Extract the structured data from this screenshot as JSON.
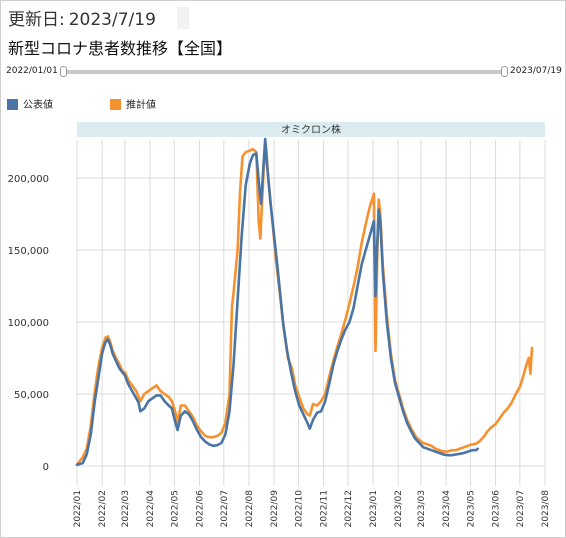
{
  "header": {
    "updated_label": "更新日:",
    "updated_value": "2023/7/19",
    "title": "新型コロナ患者数推移【全国】"
  },
  "slider": {
    "start_label": "2022/01/01",
    "end_label": "2023/07/19"
  },
  "colors": {
    "reported": "#4a74a4",
    "estimated": "#f6912f",
    "band": "#dbecf0",
    "grid": "#dcdcdc"
  },
  "chart_data": {
    "type": "line",
    "title": "",
    "xlabel": "",
    "ylabel": "",
    "band": {
      "label": "オミクロン株",
      "start": "2022-01-01",
      "end": "2023-08-01"
    },
    "xlim": [
      "2022-01-01",
      "2023-08-01"
    ],
    "ylim": [
      0,
      235000
    ],
    "grid": true,
    "legend_position": "top-left",
    "x_ticks": [
      "2022/01",
      "2022/02",
      "2022/03",
      "2022/04",
      "2022/05",
      "2022/06",
      "2022/07",
      "2022/08",
      "2022/09",
      "2022/10",
      "2022/11",
      "2022/12",
      "2023/01",
      "2023/02",
      "2023/03",
      "2023/04",
      "2023/05",
      "2023/06",
      "2023/07",
      "2023/08"
    ],
    "y_ticks": [
      {
        "value": 0,
        "label": "0"
      },
      {
        "value": 50000,
        "label": "50,000"
      },
      {
        "value": 100000,
        "label": "100,000"
      },
      {
        "value": 150000,
        "label": "150,000"
      },
      {
        "value": 200000,
        "label": "200,000"
      }
    ],
    "series": [
      {
        "name": "公表値",
        "points": [
          [
            "2022-01-01",
            800
          ],
          [
            "2022-01-08",
            2000
          ],
          [
            "2022-01-13",
            8000
          ],
          [
            "2022-01-18",
            22000
          ],
          [
            "2022-01-23",
            45000
          ],
          [
            "2022-01-27",
            60000
          ],
          [
            "2022-02-01",
            78000
          ],
          [
            "2022-02-05",
            86000
          ],
          [
            "2022-02-08",
            88000
          ],
          [
            "2022-02-11",
            84000
          ],
          [
            "2022-02-14",
            78000
          ],
          [
            "2022-02-18",
            73000
          ],
          [
            "2022-02-22",
            68000
          ],
          [
            "2022-02-26",
            65000
          ],
          [
            "2022-03-01",
            63000
          ],
          [
            "2022-03-05",
            57000
          ],
          [
            "2022-03-10",
            52000
          ],
          [
            "2022-03-15",
            47000
          ],
          [
            "2022-03-18",
            44000
          ],
          [
            "2022-03-20",
            38000
          ],
          [
            "2022-03-25",
            40000
          ],
          [
            "2022-03-30",
            45000
          ],
          [
            "2022-04-04",
            47000
          ],
          [
            "2022-04-09",
            49000
          ],
          [
            "2022-04-14",
            49000
          ],
          [
            "2022-04-19",
            45000
          ],
          [
            "2022-04-24",
            42000
          ],
          [
            "2022-04-28",
            40000
          ],
          [
            "2022-05-02",
            31000
          ],
          [
            "2022-05-05",
            25000
          ],
          [
            "2022-05-09",
            35000
          ],
          [
            "2022-05-14",
            38000
          ],
          [
            "2022-05-19",
            36000
          ],
          [
            "2022-05-24",
            31000
          ],
          [
            "2022-05-29",
            25000
          ],
          [
            "2022-06-03",
            20000
          ],
          [
            "2022-06-08",
            17000
          ],
          [
            "2022-06-13",
            15000
          ],
          [
            "2022-06-18",
            14000
          ],
          [
            "2022-06-23",
            14500
          ],
          [
            "2022-06-28",
            16000
          ],
          [
            "2022-07-03",
            22000
          ],
          [
            "2022-07-08",
            38000
          ],
          [
            "2022-07-13",
            70000
          ],
          [
            "2022-07-18",
            115000
          ],
          [
            "2022-07-23",
            160000
          ],
          [
            "2022-07-28",
            195000
          ],
          [
            "2022-08-02",
            210000
          ],
          [
            "2022-08-06",
            216000
          ],
          [
            "2022-08-10",
            217000
          ],
          [
            "2022-08-13",
            198000
          ],
          [
            "2022-08-16",
            182000
          ],
          [
            "2022-08-19",
            210000
          ],
          [
            "2022-08-21",
            227000
          ],
          [
            "2022-08-24",
            205000
          ],
          [
            "2022-08-28",
            180000
          ],
          [
            "2022-09-02",
            155000
          ],
          [
            "2022-09-07",
            128000
          ],
          [
            "2022-09-12",
            100000
          ],
          [
            "2022-09-17",
            80000
          ],
          [
            "2022-09-22",
            65000
          ],
          [
            "2022-09-27",
            52000
          ],
          [
            "2022-10-02",
            42000
          ],
          [
            "2022-10-07",
            36000
          ],
          [
            "2022-10-12",
            30000
          ],
          [
            "2022-10-15",
            26000
          ],
          [
            "2022-10-19",
            32000
          ],
          [
            "2022-10-24",
            37000
          ],
          [
            "2022-10-29",
            38000
          ],
          [
            "2022-11-03",
            45000
          ],
          [
            "2022-11-08",
            57000
          ],
          [
            "2022-11-13",
            70000
          ],
          [
            "2022-11-18",
            80000
          ],
          [
            "2022-11-23",
            88000
          ],
          [
            "2022-11-28",
            95000
          ],
          [
            "2022-12-03",
            100000
          ],
          [
            "2022-12-08",
            110000
          ],
          [
            "2022-12-13",
            125000
          ],
          [
            "2022-12-18",
            140000
          ],
          [
            "2022-12-23",
            150000
          ],
          [
            "2022-12-28",
            160000
          ],
          [
            "2023-01-02",
            170000
          ],
          [
            "2023-01-04",
            118000
          ],
          [
            "2023-01-06",
            152000
          ],
          [
            "2023-01-08",
            178000
          ],
          [
            "2023-01-10",
            170000
          ],
          [
            "2023-01-13",
            135000
          ],
          [
            "2023-01-18",
            100000
          ],
          [
            "2023-01-23",
            75000
          ],
          [
            "2023-01-28",
            58000
          ],
          [
            "2023-02-02",
            48000
          ],
          [
            "2023-02-07",
            38000
          ],
          [
            "2023-02-12",
            30000
          ],
          [
            "2023-02-17",
            24000
          ],
          [
            "2023-02-22",
            19000
          ],
          [
            "2023-02-27",
            16000
          ],
          [
            "2023-03-04",
            13000
          ],
          [
            "2023-03-09",
            12000
          ],
          [
            "2023-03-14",
            11000
          ],
          [
            "2023-03-19",
            10000
          ],
          [
            "2023-03-24",
            9000
          ],
          [
            "2023-03-29",
            8000
          ],
          [
            "2023-04-03",
            7500
          ],
          [
            "2023-04-08",
            7500
          ],
          [
            "2023-04-13",
            8000
          ],
          [
            "2023-04-18",
            8500
          ],
          [
            "2023-04-23",
            9000
          ],
          [
            "2023-04-28",
            10000
          ],
          [
            "2023-05-03",
            11000
          ],
          [
            "2023-05-08",
            11000
          ],
          [
            "2023-05-10",
            12000
          ]
        ]
      },
      {
        "name": "推計値",
        "points": [
          [
            "2022-01-01",
            1000
          ],
          [
            "2022-01-08",
            6000
          ],
          [
            "2022-01-13",
            12000
          ],
          [
            "2022-01-18",
            28000
          ],
          [
            "2022-01-23",
            52000
          ],
          [
            "2022-01-27",
            68000
          ],
          [
            "2022-02-01",
            82000
          ],
          [
            "2022-02-05",
            89000
          ],
          [
            "2022-02-08",
            90000
          ],
          [
            "2022-02-11",
            86000
          ],
          [
            "2022-02-14",
            80000
          ],
          [
            "2022-02-18",
            75000
          ],
          [
            "2022-02-22",
            71000
          ],
          [
            "2022-02-26",
            66000
          ],
          [
            "2022-03-01",
            65000
          ],
          [
            "2022-03-05",
            60000
          ],
          [
            "2022-03-10",
            56000
          ],
          [
            "2022-03-15",
            52000
          ],
          [
            "2022-03-18",
            48000
          ],
          [
            "2022-03-20",
            45000
          ],
          [
            "2022-03-25",
            50000
          ],
          [
            "2022-03-30",
            52000
          ],
          [
            "2022-04-04",
            54000
          ],
          [
            "2022-04-09",
            56000
          ],
          [
            "2022-04-14",
            52000
          ],
          [
            "2022-04-19",
            50000
          ],
          [
            "2022-04-24",
            48000
          ],
          [
            "2022-04-28",
            45000
          ],
          [
            "2022-05-02",
            38000
          ],
          [
            "2022-05-05",
            30000
          ],
          [
            "2022-05-09",
            42000
          ],
          [
            "2022-05-14",
            42000
          ],
          [
            "2022-05-19",
            38000
          ],
          [
            "2022-05-24",
            34000
          ],
          [
            "2022-05-29",
            28000
          ],
          [
            "2022-06-03",
            24000
          ],
          [
            "2022-06-08",
            21000
          ],
          [
            "2022-06-13",
            20000
          ],
          [
            "2022-06-18",
            20000
          ],
          [
            "2022-06-23",
            21000
          ],
          [
            "2022-06-28",
            23000
          ],
          [
            "2022-07-03",
            30000
          ],
          [
            "2022-07-08",
            50000
          ],
          [
            "2022-07-11",
            110000
          ],
          [
            "2022-07-13",
            120000
          ],
          [
            "2022-07-18",
            150000
          ],
          [
            "2022-07-21",
            190000
          ],
          [
            "2022-07-24",
            215000
          ],
          [
            "2022-07-28",
            218000
          ],
          [
            "2022-08-02",
            219000
          ],
          [
            "2022-08-06",
            220000
          ],
          [
            "2022-08-10",
            218000
          ],
          [
            "2022-08-13",
            170000
          ],
          [
            "2022-08-15",
            158000
          ],
          [
            "2022-08-19",
            205000
          ],
          [
            "2022-08-22",
            222000
          ],
          [
            "2022-08-25",
            198000
          ],
          [
            "2022-08-29",
            175000
          ],
          [
            "2022-09-03",
            145000
          ],
          [
            "2022-09-08",
            120000
          ],
          [
            "2022-09-13",
            95000
          ],
          [
            "2022-09-18",
            75000
          ],
          [
            "2022-09-23",
            68000
          ],
          [
            "2022-09-27",
            56000
          ],
          [
            "2022-10-02",
            48000
          ],
          [
            "2022-10-07",
            40000
          ],
          [
            "2022-10-12",
            36000
          ],
          [
            "2022-10-15",
            35000
          ],
          [
            "2022-10-19",
            43000
          ],
          [
            "2022-10-24",
            42000
          ],
          [
            "2022-10-29",
            45000
          ],
          [
            "2022-11-03",
            50000
          ],
          [
            "2022-11-08",
            62000
          ],
          [
            "2022-11-13",
            73000
          ],
          [
            "2022-11-18",
            83000
          ],
          [
            "2022-11-23",
            92000
          ],
          [
            "2022-11-28",
            102000
          ],
          [
            "2022-12-03",
            113000
          ],
          [
            "2022-12-08",
            125000
          ],
          [
            "2022-12-13",
            138000
          ],
          [
            "2022-12-18",
            155000
          ],
          [
            "2022-12-23",
            168000
          ],
          [
            "2022-12-28",
            180000
          ],
          [
            "2023-01-02",
            189000
          ],
          [
            "2023-01-04",
            80000
          ],
          [
            "2023-01-06",
            140000
          ],
          [
            "2023-01-08",
            185000
          ],
          [
            "2023-01-10",
            175000
          ],
          [
            "2023-01-13",
            140000
          ],
          [
            "2023-01-18",
            105000
          ],
          [
            "2023-01-23",
            78000
          ],
          [
            "2023-01-28",
            60000
          ],
          [
            "2023-02-02",
            50000
          ],
          [
            "2023-02-07",
            40000
          ],
          [
            "2023-02-12",
            32000
          ],
          [
            "2023-02-17",
            26000
          ],
          [
            "2023-02-22",
            21000
          ],
          [
            "2023-02-27",
            18000
          ],
          [
            "2023-03-04",
            16000
          ],
          [
            "2023-03-09",
            15000
          ],
          [
            "2023-03-14",
            14000
          ],
          [
            "2023-03-19",
            12000
          ],
          [
            "2023-03-24",
            11000
          ],
          [
            "2023-03-29",
            10000
          ],
          [
            "2023-04-03",
            10000
          ],
          [
            "2023-04-08",
            11000
          ],
          [
            "2023-04-13",
            11000
          ],
          [
            "2023-04-18",
            12000
          ],
          [
            "2023-04-23",
            13000
          ],
          [
            "2023-04-28",
            14000
          ],
          [
            "2023-05-03",
            15000
          ],
          [
            "2023-05-08",
            15500
          ],
          [
            "2023-05-12",
            17000
          ],
          [
            "2023-05-17",
            20000
          ],
          [
            "2023-05-22",
            24000
          ],
          [
            "2023-05-27",
            27000
          ],
          [
            "2023-06-01",
            29000
          ],
          [
            "2023-06-06",
            33000
          ],
          [
            "2023-06-11",
            37000
          ],
          [
            "2023-06-16",
            40000
          ],
          [
            "2023-06-21",
            44000
          ],
          [
            "2023-06-26",
            50000
          ],
          [
            "2023-07-01",
            55000
          ],
          [
            "2023-07-05",
            62000
          ],
          [
            "2023-07-09",
            70000
          ],
          [
            "2023-07-12",
            75000
          ],
          [
            "2023-07-14",
            64000
          ],
          [
            "2023-07-16",
            82000
          ]
        ]
      }
    ]
  }
}
